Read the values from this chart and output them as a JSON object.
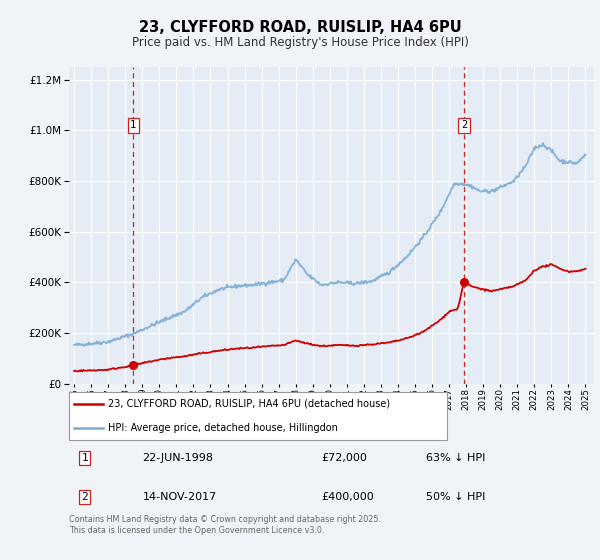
{
  "title": "23, CLYFFORD ROAD, RUISLIP, HA4 6PU",
  "subtitle": "Price paid vs. HM Land Registry's House Price Index (HPI)",
  "ylim": [
    0,
    1250000
  ],
  "xlim": [
    1994.7,
    2025.5
  ],
  "background_color": "#f0f4f8",
  "plot_bg_color": "#e6ecf5",
  "grid_color": "#ffffff",
  "legend_label_red": "23, CLYFFORD ROAD, RUISLIP, HA4 6PU (detached house)",
  "legend_label_blue": "HPI: Average price, detached house, Hillingdon",
  "sale1_date": 1998.47,
  "sale1_price": 72000,
  "sale2_date": 2017.87,
  "sale2_price": 400000,
  "footnote": "Contains HM Land Registry data © Crown copyright and database right 2025.\nThis data is licensed under the Open Government Licence v3.0.",
  "red_color": "#cc0000",
  "blue_color": "#7aadd4",
  "vline_color": "#cc0000",
  "hpi_anchors": [
    [
      1995.0,
      152000
    ],
    [
      1996.0,
      158000
    ],
    [
      1997.0,
      165000
    ],
    [
      1998.5,
      198000
    ],
    [
      1999.5,
      228000
    ],
    [
      2000.5,
      258000
    ],
    [
      2001.5,
      285000
    ],
    [
      2002.5,
      340000
    ],
    [
      2003.5,
      372000
    ],
    [
      2004.5,
      385000
    ],
    [
      2005.5,
      390000
    ],
    [
      2006.5,
      400000
    ],
    [
      2007.3,
      408000
    ],
    [
      2008.0,
      490000
    ],
    [
      2008.7,
      430000
    ],
    [
      2009.5,
      390000
    ],
    [
      2010.5,
      400000
    ],
    [
      2011.5,
      395000
    ],
    [
      2012.5,
      405000
    ],
    [
      2013.5,
      440000
    ],
    [
      2014.5,
      500000
    ],
    [
      2015.5,
      580000
    ],
    [
      2016.5,
      680000
    ],
    [
      2017.3,
      790000
    ],
    [
      2017.8,
      790000
    ],
    [
      2018.3,
      780000
    ],
    [
      2018.8,
      760000
    ],
    [
      2019.5,
      760000
    ],
    [
      2020.0,
      775000
    ],
    [
      2020.8,
      800000
    ],
    [
      2021.5,
      860000
    ],
    [
      2022.0,
      930000
    ],
    [
      2022.5,
      945000
    ],
    [
      2023.0,
      920000
    ],
    [
      2023.5,
      880000
    ],
    [
      2024.0,
      875000
    ],
    [
      2024.5,
      870000
    ],
    [
      2025.0,
      905000
    ]
  ],
  "red_anchors": [
    [
      1995.0,
      50000
    ],
    [
      1996.0,
      52000
    ],
    [
      1997.0,
      55000
    ],
    [
      1998.47,
      72000
    ],
    [
      1999.5,
      88000
    ],
    [
      2000.5,
      100000
    ],
    [
      2001.5,
      108000
    ],
    [
      2002.5,
      120000
    ],
    [
      2003.5,
      130000
    ],
    [
      2004.5,
      138000
    ],
    [
      2005.5,
      142000
    ],
    [
      2006.5,
      148000
    ],
    [
      2007.3,
      152000
    ],
    [
      2008.0,
      170000
    ],
    [
      2008.7,
      158000
    ],
    [
      2009.5,
      148000
    ],
    [
      2010.5,
      152000
    ],
    [
      2011.5,
      150000
    ],
    [
      2012.5,
      155000
    ],
    [
      2013.5,
      162000
    ],
    [
      2014.5,
      178000
    ],
    [
      2015.5,
      205000
    ],
    [
      2016.5,
      252000
    ],
    [
      2017.0,
      285000
    ],
    [
      2017.5,
      295000
    ],
    [
      2017.87,
      400000
    ],
    [
      2018.3,
      385000
    ],
    [
      2018.8,
      375000
    ],
    [
      2019.5,
      365000
    ],
    [
      2020.0,
      372000
    ],
    [
      2020.8,
      385000
    ],
    [
      2021.5,
      408000
    ],
    [
      2022.0,
      448000
    ],
    [
      2022.5,
      462000
    ],
    [
      2023.0,
      470000
    ],
    [
      2023.5,
      455000
    ],
    [
      2024.0,
      442000
    ],
    [
      2024.5,
      445000
    ],
    [
      2025.0,
      452000
    ]
  ]
}
